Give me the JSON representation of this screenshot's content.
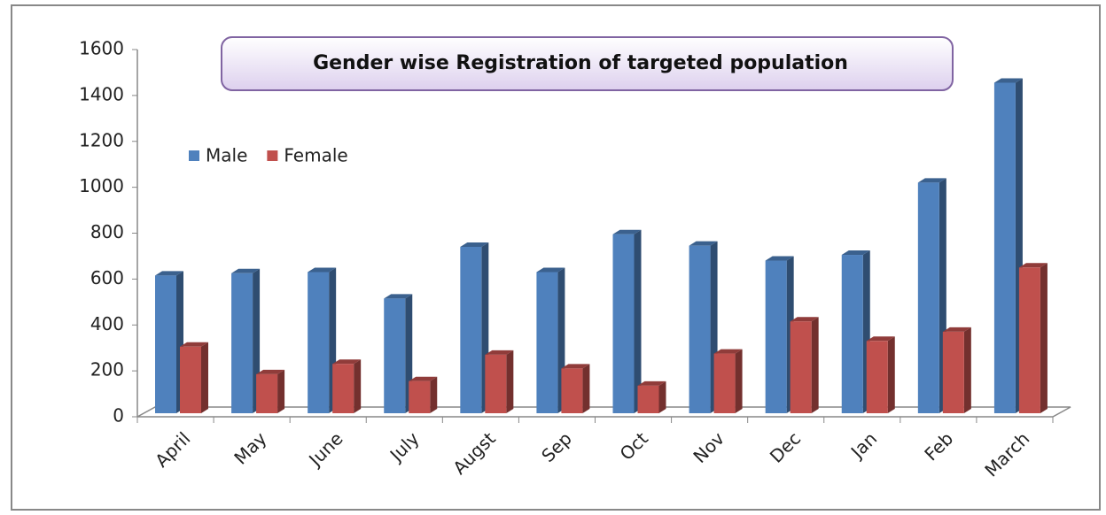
{
  "chart_data": {
    "type": "bar3d",
    "title": "Gender wise Registration of targeted population",
    "categories": [
      "April",
      "May",
      "June",
      "July",
      "Augst",
      "Sep",
      "Oct",
      "Nov",
      "Dec",
      "Jan",
      "Feb",
      "March"
    ],
    "series": [
      {
        "name": "Male",
        "color": "#4f81bd",
        "values": [
          600,
          610,
          615,
          500,
          725,
          615,
          780,
          730,
          665,
          690,
          1005,
          1440
        ]
      },
      {
        "name": "Female",
        "color": "#c0504d",
        "values": [
          290,
          170,
          215,
          140,
          255,
          195,
          120,
          260,
          400,
          315,
          355,
          635
        ]
      }
    ],
    "ylim": [
      0,
      1600
    ],
    "yticks": [
      0,
      200,
      400,
      600,
      800,
      1000,
      1200,
      1400,
      1600
    ]
  }
}
